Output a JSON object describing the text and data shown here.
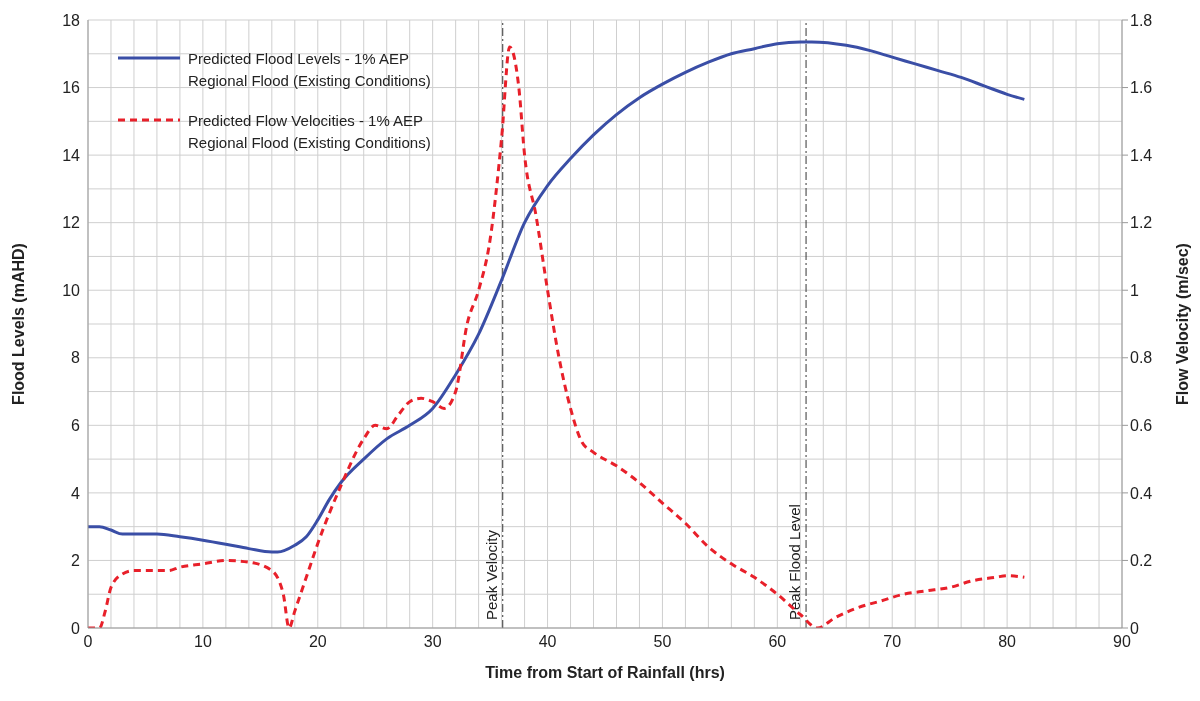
{
  "chart_data": {
    "type": "line",
    "xlabel": "Time from Start of Rainfall (hrs)",
    "ylabel": "Flood Levels (mAHD)",
    "y2label": "Flow Velocity (m/sec)",
    "xlim": [
      0,
      90
    ],
    "xticks": [
      0,
      {
        "value": 2,
        "label": null
      },
      {
        "value": 4,
        "label": null
      },
      {
        "value": 6,
        "label": null
      },
      {
        "value": 8,
        "label": null
      },
      10,
      {
        "value": 12,
        "label": null
      },
      {
        "value": 14,
        "label": null
      },
      {
        "value": 16,
        "label": null
      },
      {
        "value": 18,
        "label": null
      },
      20,
      {
        "value": 22,
        "label": null
      },
      {
        "value": 24,
        "label": null
      },
      {
        "value": 26,
        "label": null
      },
      {
        "value": 28,
        "label": null
      },
      30,
      {
        "value": 32,
        "label": null
      },
      {
        "value": 34,
        "label": null
      },
      {
        "value": 36,
        "label": null
      },
      {
        "value": 38,
        "label": null
      },
      40,
      {
        "value": 42,
        "label": null
      },
      {
        "value": 44,
        "label": null
      },
      {
        "value": 46,
        "label": null
      },
      {
        "value": 48,
        "label": null
      },
      50,
      {
        "value": 52,
        "label": null
      },
      {
        "value": 54,
        "label": null
      },
      {
        "value": 56,
        "label": null
      },
      {
        "value": 58,
        "label": null
      },
      60,
      {
        "value": 62,
        "label": null
      },
      {
        "value": 64,
        "label": null
      },
      {
        "value": 66,
        "label": null
      },
      {
        "value": 68,
        "label": null
      },
      70,
      {
        "value": 72,
        "label": null
      },
      {
        "value": 74,
        "label": null
      },
      {
        "value": 76,
        "label": null
      },
      {
        "value": 78,
        "label": null
      },
      80,
      {
        "value": 82,
        "label": null
      },
      {
        "value": 84,
        "label": null
      },
      {
        "value": 86,
        "label": null
      },
      {
        "value": 88,
        "label": null
      },
      90
    ],
    "ylim": [
      0,
      18
    ],
    "yticks": [
      0,
      {
        "value": 1,
        "label": null
      },
      2,
      {
        "value": 3,
        "label": null
      },
      4,
      {
        "value": 5,
        "label": null
      },
      6,
      {
        "value": 7,
        "label": null
      },
      8,
      {
        "value": 9,
        "label": null
      },
      10,
      {
        "value": 11,
        "label": null
      },
      12,
      {
        "value": 13,
        "label": null
      },
      14,
      {
        "value": 15,
        "label": null
      },
      16,
      {
        "value": 17,
        "label": null
      },
      18
    ],
    "y2lim": [
      0,
      1.8
    ],
    "y2ticks": [
      0,
      0.2,
      0.4,
      0.6,
      0.8,
      1,
      1.2,
      1.4,
      1.6,
      1.8
    ],
    "grid": true,
    "legend": "top left",
    "marker": "none",
    "series": [
      {
        "name": "Predicted Flood Levels - 1% AEP Regional Flood (Existing Conditions)",
        "color": "#3a4ea6",
        "line_style": "solid",
        "x": [
          0,
          1,
          2,
          3,
          6,
          8,
          10,
          12,
          14,
          16,
          16.5,
          18,
          19,
          20,
          21,
          22,
          24,
          26,
          28,
          30,
          32,
          34,
          36,
          38,
          40,
          42,
          44,
          46,
          48,
          50,
          52,
          54,
          56,
          58,
          60,
          62,
          63,
          66,
          68,
          70,
          72,
          74,
          76,
          78,
          80,
          81.5
        ],
        "values": [
          3.0,
          3.0,
          2.9,
          2.78,
          2.78,
          2.7,
          2.6,
          2.48,
          2.35,
          2.25,
          2.25,
          2.45,
          2.7,
          3.2,
          3.8,
          4.3,
          5.0,
          5.6,
          6.0,
          6.5,
          7.5,
          8.7,
          10.3,
          12.0,
          13.1,
          13.9,
          14.6,
          15.2,
          15.7,
          16.1,
          16.45,
          16.75,
          17.0,
          17.15,
          17.3,
          17.35,
          17.35,
          17.25,
          17.1,
          16.9,
          16.7,
          16.5,
          16.3,
          16.05,
          15.8,
          15.65
        ]
      },
      {
        "name": "Predicted Flow Velocities - 1% AEP Regional Flood (Existing Conditions)",
        "color": "#e8202a",
        "line_style": "dashed",
        "axis": "y2",
        "x": [
          0,
          1,
          1.5,
          2,
          3,
          4,
          7,
          8,
          10,
          12,
          14,
          16,
          17,
          17.5,
          18,
          19,
          20,
          22,
          24,
          25,
          26,
          27,
          28,
          29,
          30,
          31,
          32,
          33,
          34,
          35,
          36,
          36.7,
          37.5,
          38,
          39,
          40,
          41,
          42,
          43,
          44,
          46,
          48,
          50,
          52,
          54,
          56,
          58,
          60,
          62,
          63.5,
          65,
          67,
          69,
          71,
          73,
          75,
          77,
          79,
          80,
          81.5
        ],
        "values": [
          0,
          0,
          0.05,
          0.12,
          0.16,
          0.17,
          0.17,
          0.18,
          0.19,
          0.2,
          0.195,
          0.17,
          0.1,
          0,
          0.05,
          0.15,
          0.25,
          0.42,
          0.56,
          0.6,
          0.59,
          0.63,
          0.67,
          0.68,
          0.67,
          0.65,
          0.7,
          0.9,
          1.0,
          1.15,
          1.45,
          1.72,
          1.6,
          1.4,
          1.22,
          1.0,
          0.8,
          0.65,
          0.55,
          0.52,
          0.48,
          0.43,
          0.37,
          0.31,
          0.24,
          0.19,
          0.15,
          0.1,
          0.04,
          0,
          0.03,
          0.06,
          0.08,
          0.1,
          0.11,
          0.12,
          0.14,
          0.15,
          0.155,
          0.15
        ]
      }
    ],
    "ref_lines": [
      {
        "axis": "x",
        "value": 36.1,
        "label": "Peak Velocity",
        "color": "#333333",
        "line_style": "dashdot"
      },
      {
        "axis": "x",
        "value": 62.5,
        "label": "Peak Flood Level",
        "color": "#333333",
        "line_style": "dashdot"
      }
    ]
  }
}
